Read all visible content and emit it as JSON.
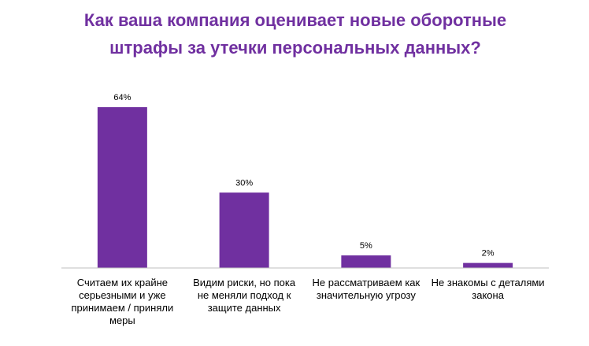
{
  "chart_data": {
    "type": "bar",
    "title": "Как ваша компания оценивает новые оборотные штрафы за утечки персональных данных?",
    "categories": [
      [
        "Считаем их крайне",
        "серьезными и уже",
        "принимаем / приняли",
        "меры"
      ],
      [
        "Видим риски, но пока",
        "не меняли подход к",
        "защите данных"
      ],
      [
        "Не рассматриваем как",
        "значительную угрозу"
      ],
      [
        "Не знакомы с деталями",
        "закона"
      ]
    ],
    "values": [
      64,
      30,
      5,
      2
    ],
    "data_labels": [
      "64%",
      "30%",
      "5%",
      "2%"
    ],
    "ylim": [
      0,
      64
    ],
    "grid": false,
    "bar_color": "#7030a0",
    "axis_color": "#bfbfbf",
    "title_color": "#7030a0"
  }
}
